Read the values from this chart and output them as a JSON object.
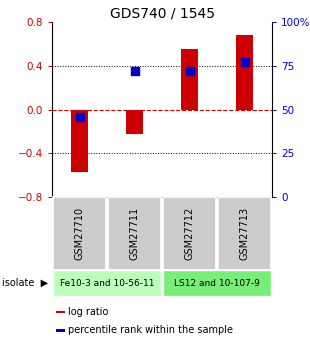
{
  "title": "GDS740 / 1545",
  "samples": [
    "GSM27710",
    "GSM27711",
    "GSM27712",
    "GSM27713"
  ],
  "log_ratios": [
    -0.57,
    -0.22,
    0.55,
    0.68
  ],
  "percentile_ranks": [
    46,
    72,
    72,
    77
  ],
  "ylim_left": [
    -0.8,
    0.8
  ],
  "ylim_right": [
    0,
    100
  ],
  "yticks_left": [
    -0.8,
    -0.4,
    0.0,
    0.4,
    0.8
  ],
  "yticks_right": [
    0,
    25,
    50,
    75,
    100
  ],
  "bar_color": "#cc0000",
  "dot_color": "#0000cc",
  "isolate_groups": [
    {
      "label": "Fe10-3 and 10-56-11",
      "samples": [
        0,
        1
      ],
      "color": "#bbffbb"
    },
    {
      "label": "LS12 and 10-107-9",
      "samples": [
        2,
        3
      ],
      "color": "#77ee77"
    }
  ],
  "legend_items": [
    {
      "label": "log ratio",
      "color": "#cc0000"
    },
    {
      "label": "percentile rank within the sample",
      "color": "#0000cc"
    }
  ],
  "hline_color": "#cc0000",
  "grid_color": "#000000",
  "title_fontsize": 10,
  "tick_fontsize": 7.5,
  "bar_width": 0.32
}
